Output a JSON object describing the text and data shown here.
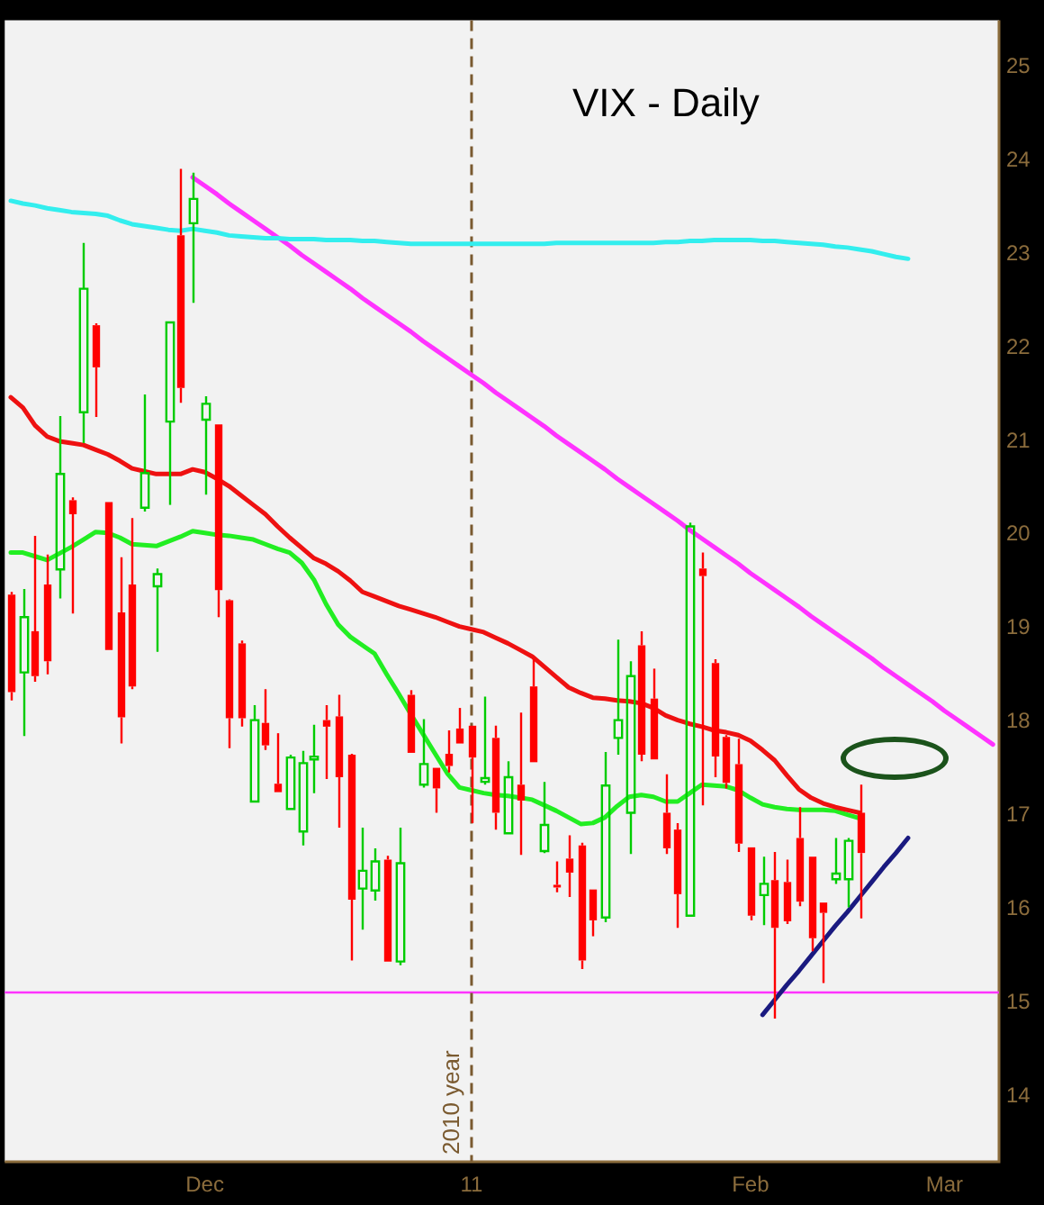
{
  "chart_data": {
    "type": "candlestick",
    "title": "VIX - Daily",
    "categories": [
      null,
      null,
      null,
      null,
      null,
      null,
      null,
      null,
      null,
      null,
      null,
      null,
      null,
      null,
      null,
      null,
      "Dec",
      null,
      null,
      null,
      null,
      null,
      null,
      null,
      null,
      null,
      null,
      null,
      null,
      null,
      null,
      null,
      null,
      null,
      null,
      null,
      null,
      null,
      "11",
      null,
      null,
      null,
      null,
      null,
      null,
      null,
      null,
      null,
      null,
      null,
      null,
      null,
      null,
      null,
      null,
      null,
      null,
      null,
      null,
      null,
      null,
      "Feb",
      null,
      null,
      null,
      null,
      null,
      null,
      null,
      null,
      null,
      null,
      null,
      null,
      null,
      null,
      null,
      "Mar",
      null,
      null,
      null,
      null
    ],
    "ohlc": [
      [
        19.36,
        19.39,
        18.23,
        18.32
      ],
      [
        18.53,
        19.42,
        17.85,
        19.12
      ],
      [
        18.97,
        19.99,
        18.43,
        18.49
      ],
      [
        19.47,
        19.79,
        18.51,
        18.65
      ],
      [
        19.63,
        21.27,
        19.32,
        20.65
      ],
      [
        20.37,
        20.4,
        19.16,
        20.22
      ],
      [
        21.31,
        23.12,
        20.98,
        22.63
      ],
      [
        22.24,
        22.26,
        21.26,
        21.79
      ],
      [
        20.35,
        20.35,
        18.77,
        18.77
      ],
      [
        19.17,
        19.76,
        17.77,
        18.05
      ],
      [
        19.47,
        20.18,
        18.35,
        18.38
      ],
      [
        20.29,
        21.5,
        20.25,
        20.66
      ],
      [
        19.45,
        19.64,
        18.75,
        19.58
      ],
      [
        21.21,
        22.27,
        20.32,
        22.27
      ],
      [
        23.2,
        23.91,
        21.41,
        21.57
      ],
      [
        23.33,
        23.87,
        22.48,
        23.59
      ],
      [
        21.23,
        21.48,
        20.43,
        21.4
      ],
      [
        21.18,
        21.18,
        19.12,
        19.41
      ],
      [
        19.3,
        19.31,
        17.72,
        18.04
      ],
      [
        18.84,
        18.87,
        17.95,
        18.04
      ],
      [
        17.15,
        18.18,
        17.15,
        18.02
      ],
      [
        17.99,
        18.35,
        17.7,
        17.75
      ],
      [
        17.34,
        17.88,
        17.25,
        17.25
      ],
      [
        17.07,
        17.65,
        17.07,
        17.62
      ],
      [
        16.83,
        17.69,
        16.68,
        17.56
      ],
      [
        17.6,
        17.97,
        17.24,
        17.63
      ],
      [
        18.02,
        18.18,
        17.39,
        17.95
      ],
      [
        18.06,
        18.29,
        16.87,
        17.41
      ],
      [
        17.65,
        17.66,
        15.45,
        16.1
      ],
      [
        16.22,
        16.87,
        15.78,
        16.41
      ],
      [
        16.2,
        16.65,
        16.09,
        16.51
      ],
      [
        16.53,
        16.57,
        15.44,
        15.44
      ],
      [
        15.44,
        16.87,
        15.4,
        16.49
      ],
      [
        18.29,
        18.34,
        17.67,
        17.67
      ],
      [
        17.33,
        18.03,
        17.3,
        17.55
      ],
      [
        17.51,
        17.51,
        17.03,
        17.29
      ],
      [
        17.66,
        17.91,
        17.46,
        17.53
      ],
      [
        17.93,
        18.15,
        17.77,
        17.77
      ],
      [
        17.96,
        17.96,
        16.92,
        17.62
      ],
      [
        17.36,
        18.27,
        17.33,
        17.4
      ],
      [
        17.83,
        17.96,
        16.85,
        17.03
      ],
      [
        16.81,
        17.58,
        16.81,
        17.41
      ],
      [
        17.33,
        18.1,
        16.58,
        17.16
      ],
      [
        18.38,
        18.67,
        17.57,
        17.57
      ],
      [
        16.62,
        17.36,
        16.6,
        16.9
      ],
      [
        16.26,
        16.51,
        16.18,
        16.24
      ],
      [
        16.54,
        16.79,
        16.13,
        16.39
      ],
      [
        16.68,
        16.71,
        15.36,
        15.45
      ],
      [
        16.21,
        16.21,
        15.71,
        15.88
      ],
      [
        15.91,
        17.68,
        15.86,
        17.32
      ],
      [
        17.83,
        18.88,
        17.65,
        18.02
      ],
      [
        17.03,
        18.65,
        16.59,
        18.49
      ],
      [
        18.82,
        18.97,
        17.58,
        17.65
      ],
      [
        18.25,
        18.57,
        17.6,
        17.6
      ],
      [
        17.03,
        17.44,
        16.59,
        16.65
      ],
      [
        16.85,
        16.92,
        15.8,
        16.16
      ],
      [
        15.93,
        20.13,
        15.93,
        20.09
      ],
      [
        19.64,
        19.81,
        17.11,
        19.56
      ],
      [
        18.63,
        18.67,
        17.41,
        17.63
      ],
      [
        17.84,
        17.86,
        17.29,
        17.35
      ],
      [
        17.55,
        17.82,
        16.61,
        16.7
      ],
      [
        16.66,
        16.66,
        15.88,
        15.93
      ],
      [
        16.15,
        16.56,
        15.83,
        16.27
      ],
      [
        16.31,
        16.61,
        14.83,
        15.8
      ],
      [
        16.29,
        16.53,
        15.84,
        15.87
      ],
      [
        16.76,
        17.09,
        16.03,
        16.08
      ],
      [
        16.56,
        16.56,
        15.55,
        15.69
      ],
      [
        16.07,
        16.07,
        15.21,
        15.96
      ],
      [
        16.32,
        16.76,
        16.27,
        16.38
      ],
      [
        16.32,
        16.76,
        16.02,
        16.73
      ],
      [
        17.03,
        17.33,
        15.9,
        16.6
      ],
      null,
      null,
      null,
      null,
      null,
      null,
      null,
      null,
      null,
      null,
      null
    ],
    "colors": [
      "#ff0000",
      "#00cc00",
      "#ff0000",
      "#ff0000",
      "#00cc00",
      "#ff0000",
      "#00cc00",
      "#ff0000",
      "#ff0000",
      "#ff0000",
      "#ff0000",
      "#00cc00",
      "#00cc00",
      "#00cc00",
      "#ff0000",
      "#00cc00",
      "#00cc00",
      "#ff0000",
      "#ff0000",
      "#ff0000",
      "#00cc00",
      "#ff0000",
      "#ff0000",
      "#00cc00",
      "#00cc00",
      "#00cc00",
      "#ff0000",
      "#ff0000",
      "#ff0000",
      "#00cc00",
      "#00cc00",
      "#ff0000",
      "#00cc00",
      "#ff0000",
      "#00cc00",
      "#ff0000",
      "#ff0000",
      "#ff0000",
      "#ff0000",
      "#00cc00",
      "#ff0000",
      "#00cc00",
      "#ff0000",
      "#ff0000",
      "#00cc00",
      "#ff0000",
      "#ff0000",
      "#ff0000",
      "#ff0000",
      "#00cc00",
      "#00cc00",
      "#00cc00",
      "#ff0000",
      "#ff0000",
      "#ff0000",
      "#ff0000",
      "#00cc00",
      "#ff0000",
      "#ff0000",
      "#ff0000",
      "#ff0000",
      "#ff0000",
      "#00cc00",
      "#ff0000",
      "#ff0000",
      "#ff0000",
      "#ff0000",
      "#ff0000",
      "#00cc00",
      "#00cc00",
      "#ff0000",
      null,
      null,
      null,
      null,
      null,
      null,
      null,
      null,
      null,
      null,
      null
    ],
    "series": [
      {
        "type": "line",
        "color": "#33eeee",
        "values": [
          23.57,
          23.54,
          23.52,
          23.49,
          23.47,
          23.45,
          23.44,
          23.43,
          23.41,
          23.36,
          23.32,
          23.3,
          23.28,
          23.26,
          23.25,
          23.27,
          23.25,
          23.23,
          23.2,
          23.19,
          23.18,
          23.17,
          23.17,
          23.16,
          23.16,
          23.16,
          23.15,
          23.15,
          23.15,
          23.14,
          23.14,
          23.13,
          23.12,
          23.11,
          23.11,
          23.11,
          23.11,
          23.11,
          23.11,
          23.11,
          23.11,
          23.11,
          23.11,
          23.11,
          23.11,
          23.12,
          23.12,
          23.12,
          23.12,
          23.12,
          23.12,
          23.12,
          23.12,
          23.12,
          23.13,
          23.13,
          23.14,
          23.14,
          23.15,
          23.15,
          23.15,
          23.15,
          23.14,
          23.14,
          23.13,
          23.12,
          23.11,
          23.1,
          23.08,
          23.07,
          23.05,
          23.03,
          23.0,
          22.97,
          22.95,
          null,
          null,
          null,
          null,
          null,
          null,
          null
        ]
      },
      {
        "type": "line",
        "color": "#ee1111",
        "values": [
          21.47,
          21.36,
          21.17,
          21.05,
          21.0,
          20.98,
          20.96,
          20.91,
          20.86,
          20.79,
          20.71,
          20.68,
          20.65,
          20.65,
          20.65,
          20.7,
          20.67,
          20.6,
          20.52,
          20.42,
          20.32,
          20.22,
          20.09,
          19.97,
          19.86,
          19.75,
          19.69,
          19.61,
          19.51,
          19.39,
          19.34,
          19.29,
          19.24,
          19.2,
          19.16,
          19.12,
          19.07,
          19.02,
          18.99,
          18.96,
          18.9,
          18.84,
          18.77,
          18.7,
          18.59,
          18.48,
          18.37,
          18.31,
          18.26,
          18.25,
          18.23,
          18.22,
          18.2,
          18.15,
          18.07,
          18.02,
          17.98,
          17.95,
          17.91,
          17.89,
          17.86,
          17.8,
          17.7,
          17.59,
          17.43,
          17.28,
          17.19,
          17.13,
          17.09,
          17.06,
          17.03,
          null,
          null,
          null,
          null,
          null,
          null,
          null,
          null,
          null,
          null,
          null
        ]
      },
      {
        "type": "line",
        "color": "#22ee22",
        "values": [
          19.81,
          19.81,
          19.77,
          19.73,
          19.8,
          19.87,
          19.95,
          20.03,
          20.02,
          19.97,
          19.9,
          19.89,
          19.88,
          19.93,
          19.98,
          20.04,
          20.02,
          20.0,
          19.99,
          19.97,
          19.95,
          19.9,
          19.85,
          19.81,
          19.7,
          19.52,
          19.26,
          19.04,
          18.91,
          18.82,
          18.73,
          18.51,
          18.3,
          18.08,
          17.87,
          17.66,
          17.45,
          17.3,
          17.27,
          17.24,
          17.22,
          17.21,
          17.19,
          17.17,
          17.11,
          17.05,
          16.98,
          16.91,
          16.92,
          16.98,
          17.1,
          17.2,
          17.22,
          17.2,
          17.15,
          17.15,
          17.24,
          17.33,
          17.32,
          17.31,
          17.27,
          17.19,
          17.12,
          17.09,
          17.07,
          17.06,
          17.06,
          17.06,
          17.05,
          17.01,
          16.97,
          null,
          null,
          null,
          null,
          null,
          null,
          null,
          null,
          null,
          null,
          null
        ]
      },
      {
        "type": "line",
        "color": "#ff33ff",
        "values": [
          null,
          null,
          null,
          null,
          null,
          null,
          null,
          null,
          null,
          null,
          null,
          null,
          null,
          null,
          null,
          23.82,
          23.73,
          23.64,
          23.54,
          23.45,
          23.36,
          23.27,
          23.18,
          23.09,
          22.99,
          22.9,
          22.81,
          22.72,
          22.63,
          22.53,
          22.44,
          22.35,
          22.26,
          22.17,
          22.07,
          21.98,
          21.89,
          21.8,
          21.71,
          21.62,
          21.52,
          21.43,
          21.34,
          21.25,
          21.16,
          21.06,
          20.97,
          20.88,
          20.79,
          20.7,
          20.6,
          20.51,
          20.42,
          20.33,
          20.24,
          20.15,
          20.05,
          19.96,
          19.87,
          19.78,
          19.69,
          19.59,
          19.5,
          19.41,
          19.32,
          19.23,
          19.13,
          19.04,
          18.95,
          18.86,
          18.77,
          18.68,
          18.58,
          18.49,
          18.4,
          18.31,
          18.22,
          18.12,
          18.03,
          17.94,
          17.85,
          17.76
        ]
      },
      {
        "type": "line",
        "color": "#1a1a80",
        "values": [
          null,
          null,
          null,
          null,
          null,
          null,
          null,
          null,
          null,
          null,
          null,
          null,
          null,
          null,
          null,
          null,
          null,
          null,
          null,
          null,
          null,
          null,
          null,
          null,
          null,
          null,
          null,
          null,
          null,
          null,
          null,
          null,
          null,
          null,
          null,
          null,
          null,
          null,
          null,
          null,
          null,
          null,
          null,
          null,
          null,
          null,
          null,
          null,
          null,
          null,
          null,
          null,
          null,
          null,
          null,
          null,
          null,
          null,
          null,
          null,
          null,
          null,
          14.87,
          15.03,
          15.19,
          15.34,
          15.5,
          15.66,
          15.82,
          15.97,
          16.13,
          16.29,
          16.45,
          16.6,
          16.76,
          null,
          null,
          null,
          null,
          null,
          null,
          null
        ]
      }
    ],
    "ylim": [
      13.3,
      25.5
    ],
    "yticks": [
      14,
      15,
      16,
      17,
      18,
      19,
      20,
      21,
      22,
      23,
      24,
      25
    ],
    "ref_lines": [
      {
        "axis": "y",
        "value": 15.11,
        "color": "#ff33ff"
      },
      {
        "axis": "x",
        "value": "11",
        "label": "2010 year",
        "color": "#7a5a30",
        "line_style": "dashed"
      }
    ],
    "grid": false,
    "legend": false
  }
}
